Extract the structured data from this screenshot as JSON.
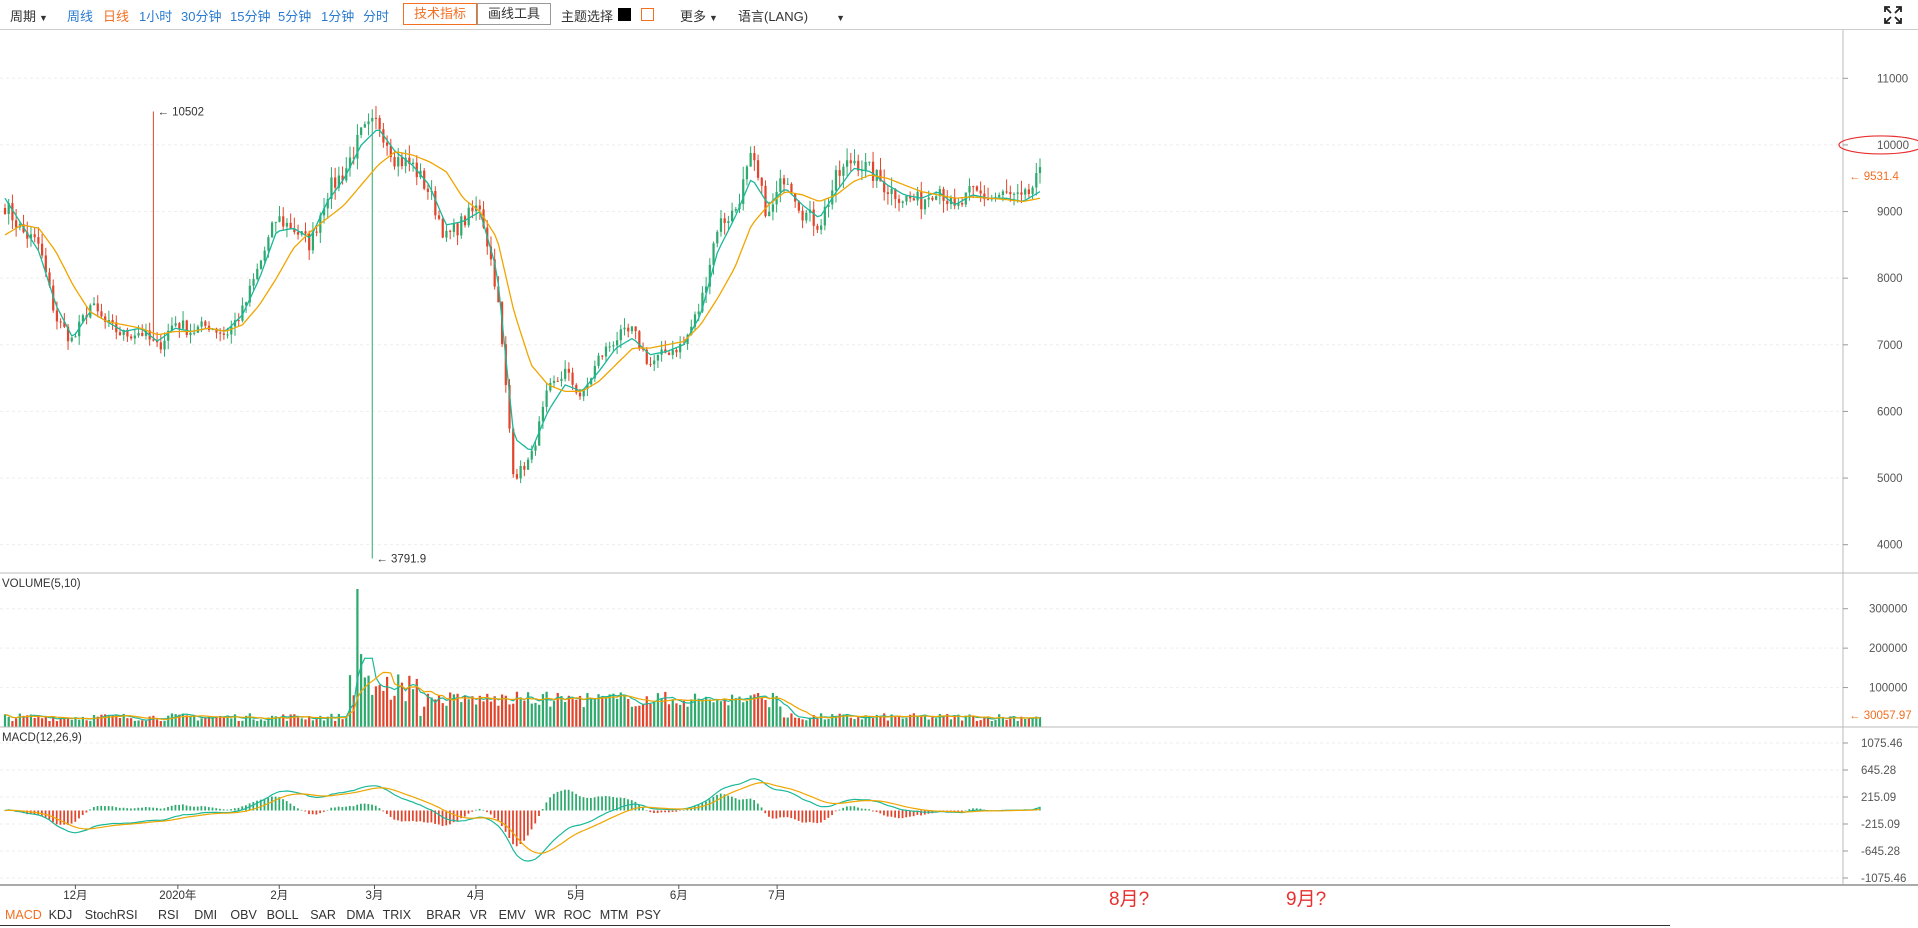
{
  "toolbar": {
    "period": "周期",
    "weekly": "周线",
    "daily": "日线",
    "h1": "1小时",
    "m30": "30分钟",
    "m15": "15分钟",
    "m5": "5分钟",
    "m1": "1分钟",
    "timeshare": "分时",
    "tech_indicator": "技术指标",
    "drawing_tools": "画线工具",
    "theme": "主题选择",
    "more": "更多",
    "language": "语言(LANG)"
  },
  "colors": {
    "up": "#2eaa6e",
    "down": "#e2452b",
    "ma5": "#1ab89a",
    "ma10": "#f0a500",
    "accent": "#f36f21",
    "annotation": "#e83030"
  },
  "indicators": [
    "MACD",
    "KDJ",
    "StochRSI",
    "RSI",
    "DMI",
    "OBV",
    "BOLL",
    "SAR",
    "DMA",
    "TRIX",
    "BRAR",
    "VR",
    "EMV",
    "WR",
    "ROC",
    "MTM",
    "PSY"
  ],
  "annotations": {
    "aug": "8月?",
    "sep": "9月?"
  },
  "chart_data": {
    "type": "candlestick",
    "price": {
      "y_ticks": [
        "11000",
        "10000",
        "9000",
        "8000",
        "7000",
        "6000",
        "5000",
        "4000"
      ],
      "ylim": [
        3650,
        11650
      ],
      "current_price": "9531.4",
      "max_label": "10502",
      "min_label": "3791.9",
      "circled_tick": "10000",
      "close_path": [
        9100,
        8700,
        8500,
        7400,
        7050,
        7600,
        7300,
        7150,
        7200,
        6950,
        7350,
        7200,
        7300,
        7150,
        7500,
        8200,
        8900,
        8750,
        8500,
        9300,
        9600,
        10150,
        10350,
        9800,
        9700,
        9300,
        8600,
        8850,
        9100,
        7800,
        5000,
        5300,
        6300,
        6600,
        6200,
        6800,
        7100,
        7200,
        6700,
        6900,
        7000,
        7600,
        8800,
        9000,
        9800,
        8900,
        9600,
        9000,
        8800,
        9500,
        9800,
        9600,
        9350,
        9200,
        9150,
        9400,
        9000,
        9300,
        9200,
        9250,
        9150,
        9531
      ],
      "ma5_path": [
        9200,
        8800,
        8400,
        7600,
        7100,
        7500,
        7350,
        7200,
        7250,
        7050,
        7250,
        7200,
        7250,
        7200,
        7450,
        8000,
        8700,
        8750,
        8600,
        9150,
        9500,
        10000,
        10250,
        9900,
        9700,
        9400,
        8800,
        8850,
        9000,
        8100,
        5600,
        5400,
        6000,
        6400,
        6300,
        6600,
        6950,
        7100,
        6850,
        6900,
        7000,
        7450,
        8400,
        8900,
        9500,
        9100,
        9350,
        9100,
        8900,
        9300,
        9650,
        9600,
        9400,
        9250,
        9200,
        9300,
        9100,
        9250,
        9200,
        9200,
        9150,
        9300
      ],
      "ma10_path": [
        8650,
        8800,
        8750,
        8400,
        7900,
        7500,
        7350,
        7300,
        7250,
        7150,
        7200,
        7200,
        7250,
        7200,
        7300,
        7600,
        8000,
        8450,
        8700,
        8900,
        9100,
        9400,
        9700,
        9900,
        9850,
        9750,
        9600,
        9200,
        9000,
        8600,
        7500,
        6700,
        6400,
        6300,
        6300,
        6450,
        6700,
        6950,
        6950,
        7000,
        7050,
        7300,
        7700,
        8150,
        8800,
        9100,
        9300,
        9250,
        9150,
        9250,
        9450,
        9550,
        9500,
        9400,
        9300,
        9250,
        9200,
        9220,
        9200,
        9180,
        9150,
        9200
      ]
    },
    "volume": {
      "label": "VOLUME(5,10)",
      "y_ticks": [
        "300000",
        "200000",
        "100000"
      ],
      "ylim": [
        0,
        350000
      ],
      "current": "30057.97"
    },
    "macd": {
      "label": "MACD(12,26,9)",
      "y_ticks": [
        "1075.46",
        "645.28",
        "215.09",
        "-215.09",
        "-645.28",
        "-1075.46"
      ],
      "ylim": [
        -1075.46,
        1075.46
      ]
    },
    "x_ticks": [
      "12月",
      "2020年",
      "2月",
      "3月",
      "4月",
      "5月",
      "6月",
      "7月"
    ]
  }
}
